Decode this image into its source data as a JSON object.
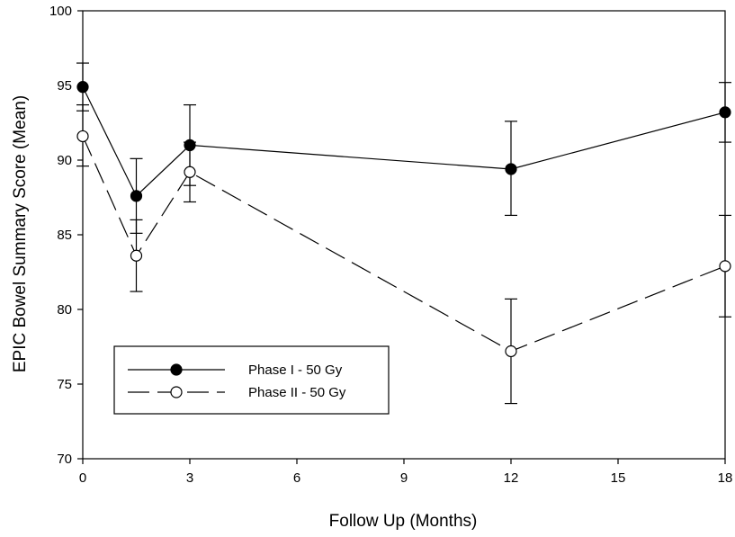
{
  "chart_data": {
    "type": "line",
    "title": "",
    "xlabel": "Follow Up (Months)",
    "ylabel": "EPIC Bowel Summary Score (Mean)",
    "xlim": [
      0,
      18
    ],
    "ylim": [
      70,
      100
    ],
    "xticks": [
      0,
      3,
      6,
      9,
      12,
      15,
      18
    ],
    "yticks": [
      70,
      75,
      80,
      85,
      90,
      95,
      100
    ],
    "legend_position": "bottom-left",
    "series": [
      {
        "name": "Phase I - 50 Gy",
        "marker": "filled-circle",
        "line_style": "solid",
        "color": "#000000",
        "x": [
          0,
          1.5,
          3,
          12,
          18
        ],
        "y": [
          94.9,
          87.6,
          91.0,
          89.4,
          93.2
        ],
        "err_low": [
          93.3,
          85.1,
          88.3,
          86.3,
          91.2
        ],
        "err_high": [
          96.5,
          90.1,
          93.7,
          92.6,
          95.2
        ]
      },
      {
        "name": "Phase II - 50 Gy",
        "marker": "open-circle",
        "line_style": "dashed",
        "color": "#000000",
        "x": [
          0,
          1.5,
          3,
          12,
          18
        ],
        "y": [
          91.6,
          83.6,
          89.2,
          77.2,
          82.9
        ],
        "err_low": [
          89.6,
          81.2,
          87.2,
          73.7,
          79.5
        ],
        "err_high": [
          93.7,
          86.0,
          91.2,
          80.7,
          86.3
        ]
      }
    ]
  }
}
